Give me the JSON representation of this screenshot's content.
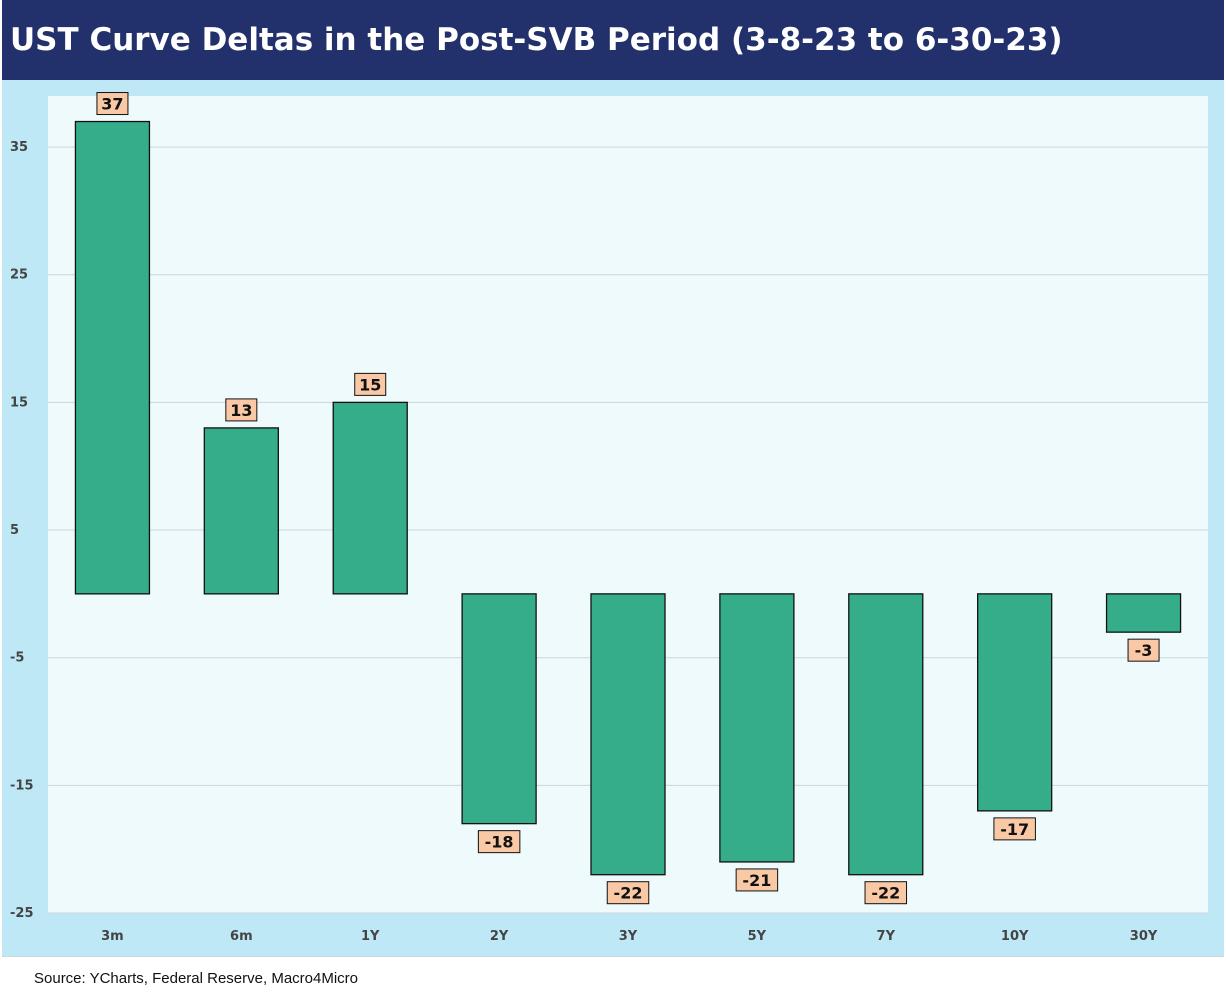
{
  "title": "UST Curve Deltas in the Post-SVB Period (3-8-23 to 6-30-23)",
  "source": "Source: YCharts, Federal Reserve, Macro4Micro",
  "colors": {
    "title_bg": "#22306b",
    "outer_bg": "#bfe8f6",
    "plot_bg": "#eefafc",
    "bar_fill": "#35ad8a",
    "bar_stroke": "#111111",
    "label_bg": "#f9c9a5",
    "gridline": "#c9d6dc"
  },
  "chart_data": {
    "type": "bar",
    "title": "UST Curve Deltas in the Post-SVB Period (3-8-23 to 6-30-23)",
    "categories": [
      "3m",
      "6m",
      "1Y",
      "2Y",
      "3Y",
      "5Y",
      "7Y",
      "10Y",
      "30Y"
    ],
    "values": [
      37,
      13,
      15,
      -18,
      -22,
      -21,
      -22,
      -17,
      -3
    ],
    "data_labels": [
      "37",
      "13",
      "15",
      "-18",
      "-22",
      "-21",
      "-22",
      "-17",
      "-3"
    ],
    "y_ticks": [
      35,
      25,
      15,
      5,
      -5,
      -15,
      -25
    ],
    "ylim": [
      -25,
      39
    ],
    "xlabel": "",
    "ylabel": "",
    "grid": true,
    "legend": "none"
  }
}
